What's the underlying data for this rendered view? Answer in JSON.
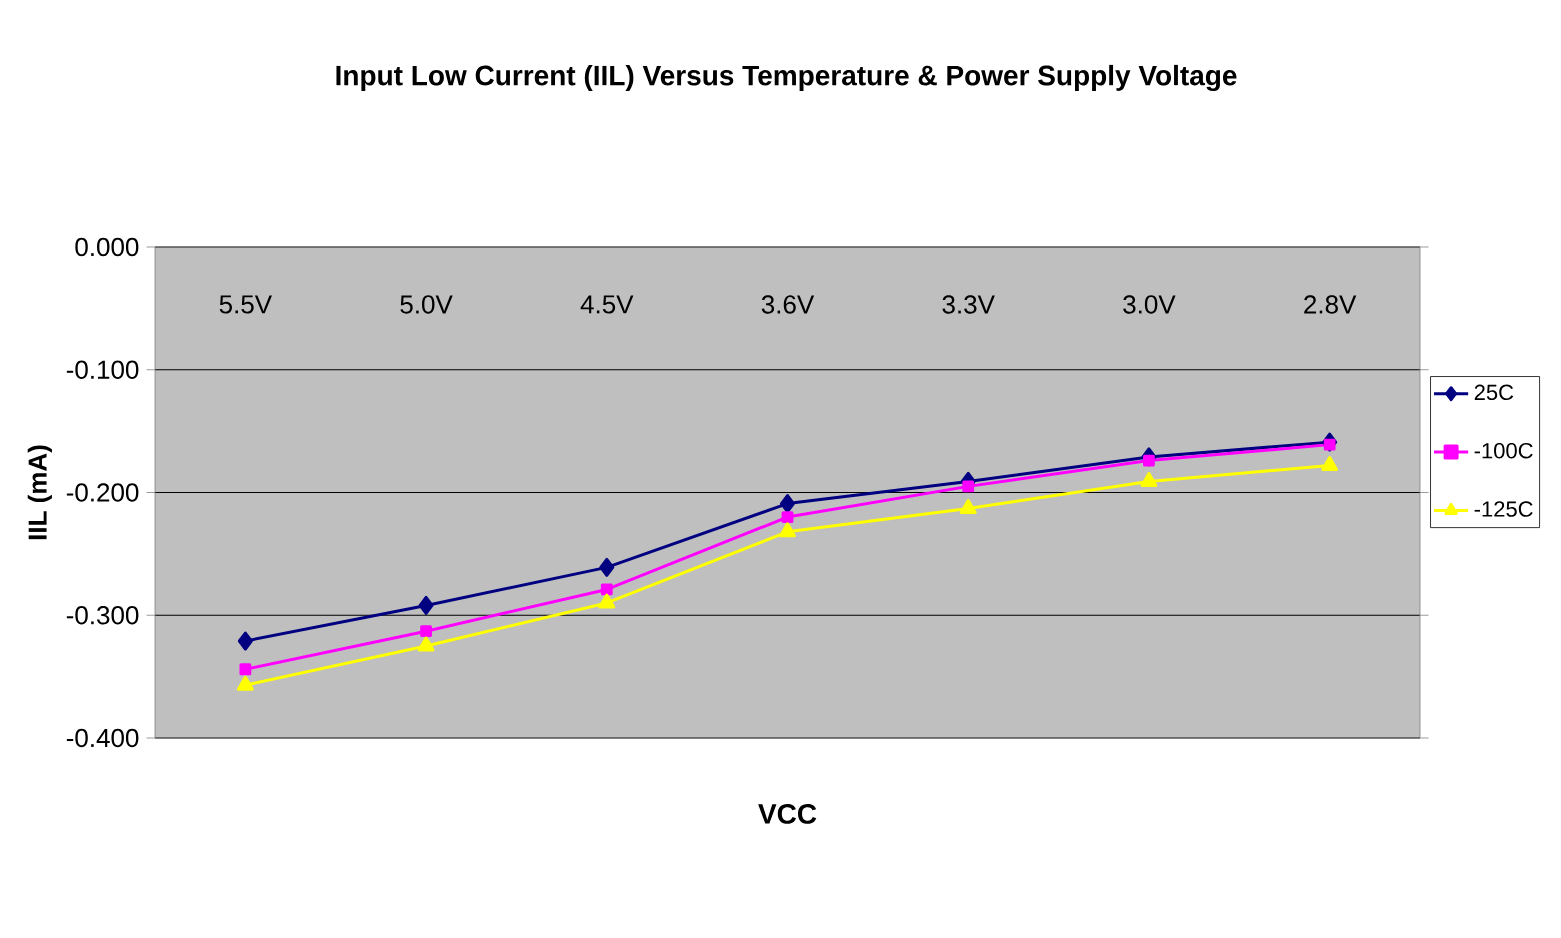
{
  "chart_data": {
    "type": "line",
    "title": "Input Low Current (IIL) Versus Temperature & Power Supply Voltage",
    "xlabel": "VCC",
    "ylabel": "IIL (mA)",
    "categories": [
      "5.5V",
      "5.0V",
      "4.5V",
      "3.6V",
      "3.3V",
      "3.0V",
      "2.8V"
    ],
    "series": [
      {
        "name": "25C",
        "color": "#000080",
        "marker": "diamond",
        "values": [
          -0.321,
          -0.292,
          -0.261,
          -0.209,
          -0.191,
          -0.171,
          -0.159
        ]
      },
      {
        "name": "-100C",
        "color": "#ff00ff",
        "marker": "square",
        "values": [
          -0.344,
          -0.313,
          -0.279,
          -0.22,
          -0.195,
          -0.174,
          -0.161
        ]
      },
      {
        "name": "-125C",
        "color": "#ffff00",
        "marker": "triangle",
        "values": [
          -0.357,
          -0.325,
          -0.29,
          -0.232,
          -0.213,
          -0.191,
          -0.178
        ]
      }
    ],
    "ylim": [
      -0.4,
      0
    ],
    "yticks": [
      {
        "value": -0.4,
        "label": "-0.400"
      },
      {
        "value": -0.3,
        "label": "-0.300"
      },
      {
        "value": -0.2,
        "label": "-0.200"
      },
      {
        "value": -0.1,
        "label": "-0.100"
      },
      {
        "value": 0,
        "label": "0.000"
      }
    ],
    "grid": "y",
    "legend": "right",
    "line_style": "solid"
  }
}
